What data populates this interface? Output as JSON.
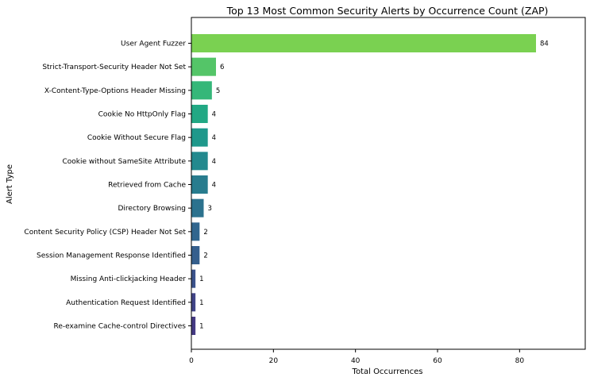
{
  "chart_data": {
    "type": "bar",
    "orientation": "horizontal",
    "title": "Top 13 Most Common Security Alerts by Occurrence Count (ZAP)",
    "xlabel": "Total Occurrences",
    "ylabel": "Alert Type",
    "xlim": [
      0,
      96
    ],
    "x_ticks": [
      0,
      20,
      40,
      60,
      80
    ],
    "grid": false,
    "legend": "none",
    "colormap": "viridis",
    "categories": [
      "User Agent Fuzzer",
      "Strict-Transport-Security Header Not Set",
      "X-Content-Type-Options Header Missing",
      "Cookie No HttpOnly Flag",
      "Cookie Without Secure Flag",
      "Cookie without SameSite Attribute",
      "Retrieved from Cache",
      "Directory Browsing",
      "Content Security Policy (CSP) Header Not Set",
      "Session Management Response Identified",
      "Missing Anti-clickjacking Header",
      "Authentication Request Identified",
      "Re-examine Cache-control Directives"
    ],
    "values": [
      84,
      6,
      5,
      4,
      4,
      4,
      4,
      3,
      2,
      2,
      1,
      1,
      1
    ],
    "colors": [
      "#7ad151",
      "#54c568",
      "#35b779",
      "#22a884",
      "#1f988b",
      "#23898e",
      "#287c8e",
      "#2c728e",
      "#31668e",
      "#355f8d",
      "#3b528b",
      "#414487",
      "#443983"
    ]
  }
}
